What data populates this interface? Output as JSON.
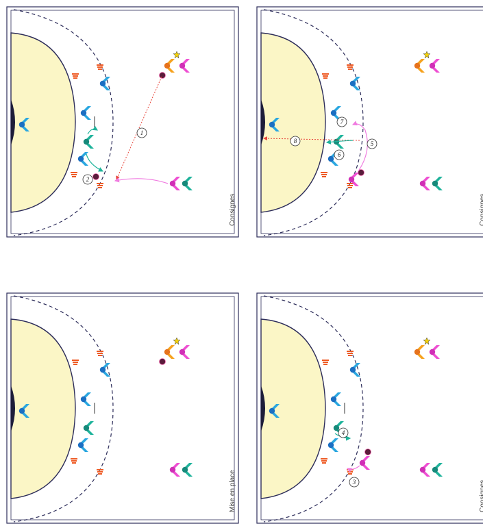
{
  "panels": [
    {
      "id": "top-left",
      "caption": "Consignes",
      "ball_at": "left-back-attacker",
      "steps": [
        "1",
        "2"
      ],
      "defender_line_down": true
    },
    {
      "id": "top-right",
      "caption": "Consignes",
      "ball_at": "right-back-attacker",
      "steps": [
        "5",
        "6",
        "7",
        "8"
      ],
      "defender_line_down": false
    },
    {
      "id": "bottom-left",
      "caption": "Mise en place",
      "ball_at": "center-back",
      "steps": [],
      "defender_line_down": true
    },
    {
      "id": "bottom-right",
      "caption": "Consignes",
      "ball_at": "left-wing",
      "steps": [
        "3",
        "4"
      ],
      "defender_line_down": true
    }
  ],
  "colors": {
    "court_line": "#2d2d5a",
    "goal_area": "#fbf6c6",
    "defender": "#2aa7e0",
    "pivot": "#1fb39b",
    "attacker": "#ee4fd2",
    "orange_player": "#f6a21e",
    "cone": "#ee5a24",
    "pass_arrow": "#e8463b",
    "move_arrow": "#f07be0",
    "teal_arrow": "#1fb39b",
    "ball": "#5a1c3b",
    "star": "#f4d20a"
  },
  "icons": [
    "cone-icon",
    "ball-icon",
    "star-icon",
    "player-chevron-icon"
  ]
}
